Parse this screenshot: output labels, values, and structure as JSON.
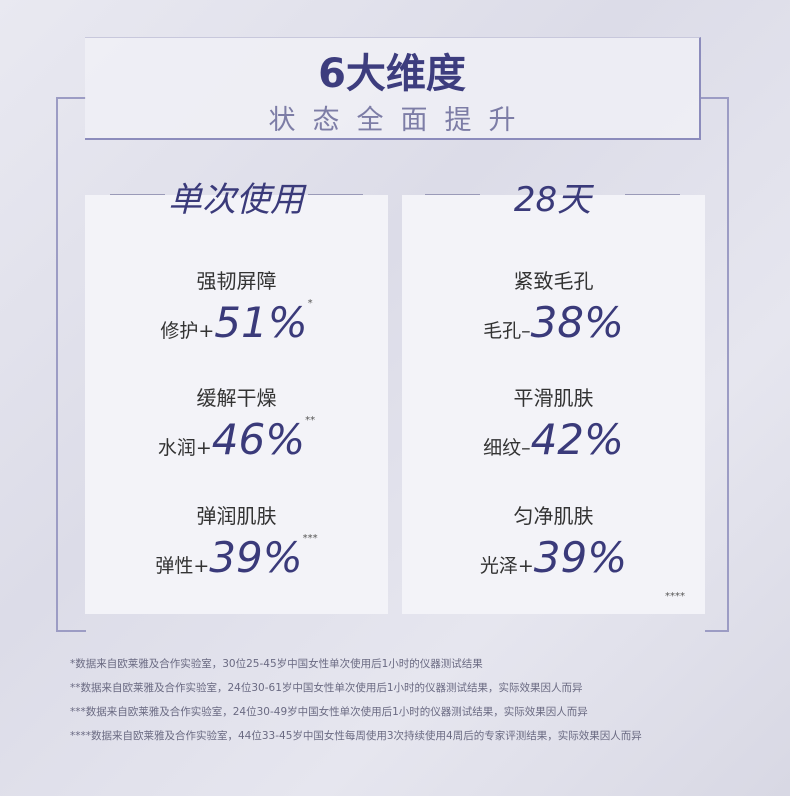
{
  "header": {
    "title": "6大维度",
    "subtitle": "状态全面提升"
  },
  "columns": [
    {
      "heading": "单次使用",
      "items": [
        {
          "label": "强韧屏障",
          "prefix": "修护+",
          "value": "51%",
          "mark": "*"
        },
        {
          "label": "缓解干燥",
          "prefix": "水润+",
          "value": "46%",
          "mark": "**"
        },
        {
          "label": "弹润肌肤",
          "prefix": "弹性+",
          "value": "39%",
          "mark": "***"
        }
      ]
    },
    {
      "heading": "28天",
      "items": [
        {
          "label": "紧致毛孔",
          "prefix": "毛孔–",
          "value": "38%",
          "mark": ""
        },
        {
          "label": "平滑肌肤",
          "prefix": "细纹–",
          "value": "42%",
          "mark": ""
        },
        {
          "label": "匀净肌肤",
          "prefix": "光泽+",
          "value": "39%",
          "mark": ""
        }
      ],
      "card_mark": "****"
    }
  ],
  "footnotes": [
    "*数据来自欧莱雅及合作实验室，30位25-45岁中国女性单次使用后1小时的仪器测试结果",
    "**数据来自欧莱雅及合作实验室，24位30-61岁中国女性单次使用后1小时的仪器测试结果，实际效果因人而异",
    "***数据来自欧莱雅及合作实验室，24位30-49岁中国女性单次使用后1小时的仪器测试结果，实际效果因人而异",
    "****数据来自欧莱雅及合作实验室，44位33-45岁中国女性每周使用3次持续使用4周后的专家评测结果，实际效果因人而异"
  ]
}
